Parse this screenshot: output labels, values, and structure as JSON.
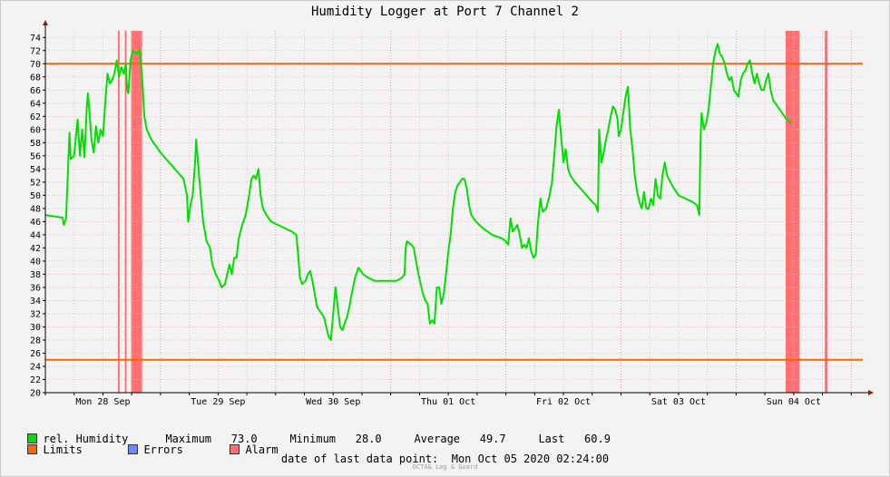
{
  "colors": {
    "humidity": "#00e000",
    "limits": "#ff6600",
    "errors": "#6f86ff",
    "alarm": "#ff7070",
    "grid_minor": "#e6b3b3",
    "grid_major": "#cc8a8a"
  },
  "chart_data": {
    "type": "line",
    "title": "Humidity Logger at Port 7 Channel 2",
    "ylim": [
      20,
      75
    ],
    "yticks": [
      20,
      22,
      24,
      26,
      28,
      30,
      32,
      34,
      36,
      38,
      40,
      42,
      44,
      46,
      48,
      50,
      52,
      54,
      56,
      58,
      60,
      62,
      64,
      66,
      68,
      70,
      72,
      74
    ],
    "xlim": [
      0,
      7.1
    ],
    "xticks": [
      {
        "x": 0.5,
        "label": "Mon 28 Sep"
      },
      {
        "x": 1.5,
        "label": "Tue 29 Sep"
      },
      {
        "x": 2.5,
        "label": "Wed 30 Sep"
      },
      {
        "x": 3.5,
        "label": "Thu 01 Oct"
      },
      {
        "x": 4.5,
        "label": "Fri 02 Oct"
      },
      {
        "x": 5.5,
        "label": "Sat 03 Oct"
      },
      {
        "x": 6.5,
        "label": "Sun 04 Oct"
      }
    ],
    "limits": [
      70,
      25
    ],
    "alarm_spans": [
      [
        0.63,
        0.645
      ],
      [
        0.69,
        0.705
      ],
      [
        0.745,
        0.84
      ],
      [
        6.43,
        6.55
      ],
      [
        6.77,
        6.795
      ]
    ],
    "series": [
      {
        "name": "rel. Humidity",
        "x_unit": "days since axis start",
        "points": [
          [
            0.0,
            47.0
          ],
          [
            0.15,
            46.6
          ],
          [
            0.16,
            45.5
          ],
          [
            0.18,
            46.5
          ],
          [
            0.2,
            55.5
          ],
          [
            0.21,
            59.5
          ],
          [
            0.22,
            55.5
          ],
          [
            0.25,
            56.0
          ],
          [
            0.28,
            61.5
          ],
          [
            0.3,
            56.0
          ],
          [
            0.32,
            60.0
          ],
          [
            0.34,
            55.8
          ],
          [
            0.36,
            63.5
          ],
          [
            0.37,
            65.5
          ],
          [
            0.39,
            61.0
          ],
          [
            0.4,
            58.5
          ],
          [
            0.42,
            56.5
          ],
          [
            0.44,
            60.5
          ],
          [
            0.46,
            58.0
          ],
          [
            0.48,
            60.0
          ],
          [
            0.5,
            59.0
          ],
          [
            0.52,
            64.0
          ],
          [
            0.54,
            68.5
          ],
          [
            0.56,
            67.0
          ],
          [
            0.58,
            67.5
          ],
          [
            0.6,
            68.5
          ],
          [
            0.62,
            70.5
          ],
          [
            0.64,
            68.0
          ],
          [
            0.66,
            69.5
          ],
          [
            0.68,
            68.5
          ],
          [
            0.7,
            70.0
          ],
          [
            0.71,
            66.0
          ],
          [
            0.72,
            65.5
          ],
          [
            0.74,
            70.5
          ],
          [
            0.76,
            72.0
          ],
          [
            0.79,
            71.5
          ],
          [
            0.82,
            72.0
          ],
          [
            0.84,
            68.0
          ],
          [
            0.86,
            62.0
          ],
          [
            0.88,
            60.0
          ],
          [
            0.92,
            58.5
          ],
          [
            0.96,
            57.5
          ],
          [
            1.0,
            56.5
          ],
          [
            1.05,
            55.5
          ],
          [
            1.1,
            54.5
          ],
          [
            1.15,
            53.5
          ],
          [
            1.2,
            52.5
          ],
          [
            1.23,
            50.0
          ],
          [
            1.24,
            46.0
          ],
          [
            1.26,
            48.5
          ],
          [
            1.28,
            50.0
          ],
          [
            1.3,
            55.0
          ],
          [
            1.31,
            58.5
          ],
          [
            1.33,
            54.0
          ],
          [
            1.35,
            50.0
          ],
          [
            1.37,
            46.0
          ],
          [
            1.4,
            43.0
          ],
          [
            1.43,
            42.0
          ],
          [
            1.45,
            39.5
          ],
          [
            1.48,
            38.0
          ],
          [
            1.51,
            37.0
          ],
          [
            1.53,
            36.0
          ],
          [
            1.56,
            36.5
          ],
          [
            1.58,
            38.0
          ],
          [
            1.6,
            39.5
          ],
          [
            1.62,
            38.0
          ],
          [
            1.64,
            40.5
          ],
          [
            1.66,
            40.5
          ],
          [
            1.68,
            43.5
          ],
          [
            1.71,
            45.5
          ],
          [
            1.74,
            47.0
          ],
          [
            1.77,
            50.0
          ],
          [
            1.79,
            52.5
          ],
          [
            1.81,
            53.0
          ],
          [
            1.83,
            52.5
          ],
          [
            1.85,
            54.0
          ],
          [
            1.87,
            50.0
          ],
          [
            1.89,
            48.0
          ],
          [
            1.92,
            47.0
          ],
          [
            1.96,
            46.0
          ],
          [
            2.02,
            45.5
          ],
          [
            2.08,
            45.0
          ],
          [
            2.14,
            44.5
          ],
          [
            2.18,
            44.0
          ],
          [
            2.2,
            40.0
          ],
          [
            2.21,
            37.5
          ],
          [
            2.23,
            36.5
          ],
          [
            2.26,
            37.0
          ],
          [
            2.28,
            38.0
          ],
          [
            2.3,
            38.5
          ],
          [
            2.32,
            37.0
          ],
          [
            2.34,
            35.0
          ],
          [
            2.36,
            33.0
          ],
          [
            2.38,
            32.5
          ],
          [
            2.4,
            32.0
          ],
          [
            2.42,
            31.5
          ],
          [
            2.44,
            30.0
          ],
          [
            2.46,
            28.5
          ],
          [
            2.48,
            28.0
          ],
          [
            2.5,
            32.0
          ],
          [
            2.52,
            36.0
          ],
          [
            2.54,
            33.0
          ],
          [
            2.56,
            30.0
          ],
          [
            2.58,
            29.5
          ],
          [
            2.6,
            30.5
          ],
          [
            2.62,
            31.5
          ],
          [
            2.64,
            33.0
          ],
          [
            2.66,
            35.0
          ],
          [
            2.69,
            37.5
          ],
          [
            2.72,
            39.0
          ],
          [
            2.76,
            38.0
          ],
          [
            2.8,
            37.5
          ],
          [
            2.86,
            37.0
          ],
          [
            2.95,
            37.0
          ],
          [
            3.05,
            37.0
          ],
          [
            3.1,
            37.5
          ],
          [
            3.12,
            38.0
          ],
          [
            3.13,
            42.0
          ],
          [
            3.14,
            43.0
          ],
          [
            3.18,
            42.5
          ],
          [
            3.2,
            42.0
          ],
          [
            3.22,
            40.0
          ],
          [
            3.24,
            38.0
          ],
          [
            3.26,
            36.5
          ],
          [
            3.28,
            35.0
          ],
          [
            3.3,
            34.0
          ],
          [
            3.32,
            33.5
          ],
          [
            3.34,
            30.5
          ],
          [
            3.36,
            31.0
          ],
          [
            3.38,
            30.5
          ],
          [
            3.4,
            36.0
          ],
          [
            3.42,
            36.0
          ],
          [
            3.44,
            33.5
          ],
          [
            3.46,
            35.0
          ],
          [
            3.48,
            38.0
          ],
          [
            3.5,
            41.5
          ],
          [
            3.52,
            44.0
          ],
          [
            3.54,
            48.0
          ],
          [
            3.56,
            50.5
          ],
          [
            3.58,
            51.5
          ],
          [
            3.62,
            52.5
          ],
          [
            3.64,
            52.5
          ],
          [
            3.66,
            51.0
          ],
          [
            3.68,
            48.5
          ],
          [
            3.7,
            47.0
          ],
          [
            3.74,
            46.0
          ],
          [
            3.8,
            45.0
          ],
          [
            3.88,
            44.0
          ],
          [
            3.96,
            43.5
          ],
          [
            4.0,
            43.0
          ],
          [
            4.02,
            42.5
          ],
          [
            4.04,
            46.5
          ],
          [
            4.06,
            44.5
          ],
          [
            4.08,
            45.0
          ],
          [
            4.1,
            45.5
          ],
          [
            4.12,
            44.0
          ],
          [
            4.14,
            42.0
          ],
          [
            4.16,
            42.5
          ],
          [
            4.18,
            42.0
          ],
          [
            4.2,
            43.5
          ],
          [
            4.22,
            41.5
          ],
          [
            4.24,
            40.5
          ],
          [
            4.26,
            41.0
          ],
          [
            4.28,
            46.0
          ],
          [
            4.3,
            49.5
          ],
          [
            4.32,
            47.5
          ],
          [
            4.35,
            48.0
          ],
          [
            4.38,
            50.0
          ],
          [
            4.4,
            52.0
          ],
          [
            4.42,
            56.0
          ],
          [
            4.44,
            60.5
          ],
          [
            4.46,
            63.0
          ],
          [
            4.48,
            59.0
          ],
          [
            4.5,
            55.0
          ],
          [
            4.52,
            57.0
          ],
          [
            4.54,
            54.0
          ],
          [
            4.56,
            53.0
          ],
          [
            4.6,
            52.0
          ],
          [
            4.65,
            51.0
          ],
          [
            4.7,
            50.0
          ],
          [
            4.75,
            49.0
          ],
          [
            4.78,
            48.5
          ],
          [
            4.8,
            47.5
          ],
          [
            4.81,
            60.0
          ],
          [
            4.83,
            55.0
          ],
          [
            4.85,
            56.5
          ],
          [
            4.87,
            58.5
          ],
          [
            4.89,
            60.0
          ],
          [
            4.91,
            62.0
          ],
          [
            4.93,
            63.5
          ],
          [
            4.95,
            63.0
          ],
          [
            4.97,
            61.5
          ],
          [
            4.98,
            59.0
          ],
          [
            5.0,
            60.0
          ],
          [
            5.02,
            62.5
          ],
          [
            5.04,
            65.0
          ],
          [
            5.06,
            66.5
          ],
          [
            5.08,
            60.0
          ],
          [
            5.1,
            57.0
          ],
          [
            5.12,
            53.0
          ],
          [
            5.14,
            50.5
          ],
          [
            5.16,
            49.0
          ],
          [
            5.18,
            48.0
          ],
          [
            5.2,
            50.5
          ],
          [
            5.22,
            48.0
          ],
          [
            5.24,
            48.0
          ],
          [
            5.26,
            49.5
          ],
          [
            5.28,
            48.5
          ],
          [
            5.3,
            52.5
          ],
          [
            5.32,
            50.0
          ],
          [
            5.34,
            49.5
          ],
          [
            5.36,
            53.0
          ],
          [
            5.38,
            55.0
          ],
          [
            5.4,
            53.0
          ],
          [
            5.43,
            52.0
          ],
          [
            5.46,
            51.0
          ],
          [
            5.5,
            50.0
          ],
          [
            5.56,
            49.5
          ],
          [
            5.62,
            49.0
          ],
          [
            5.66,
            48.5
          ],
          [
            5.68,
            47.0
          ],
          [
            5.69,
            58.0
          ],
          [
            5.7,
            62.5
          ],
          [
            5.72,
            60.0
          ],
          [
            5.74,
            61.0
          ],
          [
            5.76,
            63.0
          ],
          [
            5.78,
            66.5
          ],
          [
            5.8,
            70.0
          ],
          [
            5.82,
            72.0
          ],
          [
            5.84,
            73.0
          ],
          [
            5.86,
            71.5
          ],
          [
            5.88,
            71.0
          ],
          [
            5.9,
            70.0
          ],
          [
            5.92,
            68.5
          ],
          [
            5.94,
            67.5
          ],
          [
            5.96,
            68.0
          ],
          [
            5.98,
            66.0
          ],
          [
            6.0,
            65.5
          ],
          [
            6.02,
            65.0
          ],
          [
            6.04,
            67.5
          ],
          [
            6.06,
            68.5
          ],
          [
            6.08,
            69.0
          ],
          [
            6.1,
            70.0
          ],
          [
            6.12,
            70.5
          ],
          [
            6.14,
            68.5
          ],
          [
            6.16,
            67.0
          ],
          [
            6.18,
            68.5
          ],
          [
            6.2,
            67.0
          ],
          [
            6.22,
            66.0
          ],
          [
            6.24,
            66.0
          ],
          [
            6.26,
            67.5
          ],
          [
            6.28,
            68.5
          ],
          [
            6.3,
            66.0
          ],
          [
            6.32,
            64.5
          ],
          [
            6.36,
            63.5
          ],
          [
            6.4,
            62.5
          ],
          [
            6.44,
            61.5
          ],
          [
            6.48,
            61.0
          ]
        ]
      }
    ]
  },
  "legend": {
    "humidity_label": "rel. Humidity",
    "max_label": "Maximum",
    "max_value": "73.0",
    "min_label": "Minimum",
    "min_value": "28.0",
    "avg_label": "Average",
    "avg_value": "49.7",
    "last_label": "Last",
    "last_value": "60.9",
    "limits_label": "Limits",
    "errors_label": "Errors",
    "alarm_label": "Alarm"
  },
  "footer": {
    "date_label": "date of last data point:  Mon Oct 05 2020 02:24:00",
    "credit": "OCTA& Log & Guard"
  }
}
